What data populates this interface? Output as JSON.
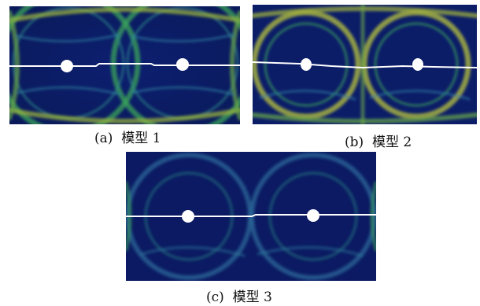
{
  "figure": {
    "panels": [
      {
        "caption": "(a)  模型 1"
      },
      {
        "caption": "(b)  模型 2"
      },
      {
        "caption": "(c)  模型 3"
      }
    ]
  },
  "colors": {
    "background": "#0d1f6e",
    "pattern_green": "#3aa35a",
    "pattern_yellow": "#b7c23c",
    "crack_line": "#ffffff",
    "hole": "#ffffff"
  }
}
